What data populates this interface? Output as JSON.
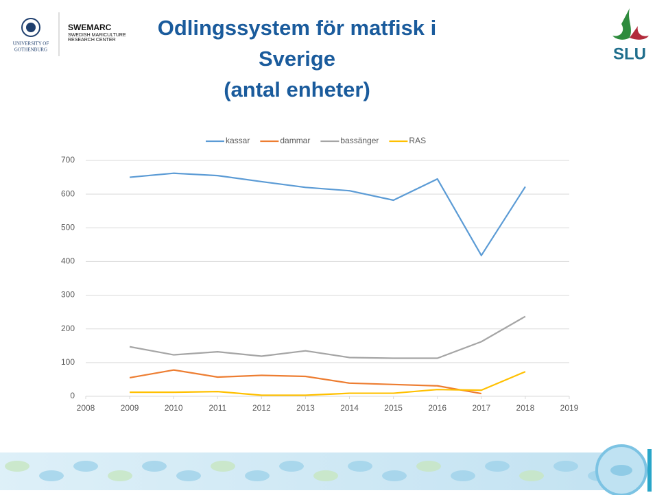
{
  "logos": {
    "swemarc": "SWEMARC",
    "swemarc_sub1": "SWEDISH MARICULTURE",
    "swemarc_sub2": "RESEARCH CENTER",
    "gu1": "UNIVERSITY OF",
    "gu2": "GOTHENBURG",
    "slu": "SLU"
  },
  "chart_data": {
    "type": "line",
    "title": "Odlingssystem för matfisk i Sverige\n(antal enheter)",
    "x": [
      2009,
      2010,
      2011,
      2012,
      2013,
      2014,
      2015,
      2016,
      2017,
      2018
    ],
    "series": [
      {
        "name": "kassar",
        "color": "#5b9bd5",
        "values": [
          650,
          662,
          655,
          637,
          620,
          610,
          582,
          645,
          418,
          622
        ]
      },
      {
        "name": "dammar",
        "color": "#ed7d31",
        "values": [
          55,
          78,
          57,
          62,
          59,
          39,
          35,
          31,
          8,
          null
        ]
      },
      {
        "name": "bassänger",
        "color": "#a5a5a5",
        "values": [
          147,
          123,
          132,
          119,
          135,
          115,
          113,
          113,
          162,
          237
        ]
      },
      {
        "name": "RAS",
        "color": "#ffc000",
        "values": [
          12,
          12,
          14,
          3,
          3,
          9,
          9,
          20,
          18,
          73
        ]
      }
    ],
    "xlim": [
      2008,
      2019
    ],
    "xticks": [
      2008,
      2009,
      2010,
      2011,
      2012,
      2013,
      2014,
      2015,
      2016,
      2017,
      2018,
      2019
    ],
    "ylim": [
      0,
      700
    ],
    "yticks": [
      0,
      100,
      200,
      300,
      400,
      500,
      600,
      700
    ],
    "grid": true,
    "legend": "top"
  }
}
